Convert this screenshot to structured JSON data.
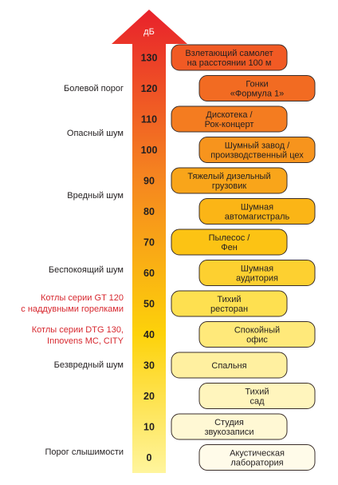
{
  "unit": "дБ",
  "levels": [
    {
      "value": "130",
      "box": [
        "Взлетающий самолет",
        "на расстоянии 100 м"
      ]
    },
    {
      "value": "120",
      "box": [
        "Гонки",
        "«Формула 1»"
      ]
    },
    {
      "value": "110",
      "box": [
        "Дискотека /",
        "Рок-концерт"
      ]
    },
    {
      "value": "100",
      "box": [
        "Шумный завод /",
        "производственный цех"
      ]
    },
    {
      "value": "90",
      "box": [
        "Тяжелый дизельный",
        "грузовик"
      ]
    },
    {
      "value": "80",
      "box": [
        "Шумная",
        "автомагистраль"
      ]
    },
    {
      "value": "70",
      "box": [
        "Пылесос /",
        "Фен"
      ]
    },
    {
      "value": "60",
      "box": [
        "Шумная",
        "аудитория"
      ]
    },
    {
      "value": "50",
      "box": [
        "Тихий",
        "ресторан"
      ]
    },
    {
      "value": "40",
      "box": [
        "Спокойный",
        "офис"
      ]
    },
    {
      "value": "30",
      "box": [
        "Спальня"
      ]
    },
    {
      "value": "20",
      "box": [
        "Тихий",
        "сад"
      ]
    },
    {
      "value": "10",
      "box": [
        "Студия",
        "звукозаписи"
      ]
    },
    {
      "value": "0",
      "box": [
        "Акустическая",
        "лаборатория"
      ]
    }
  ],
  "side_labels": [
    {
      "lines": [
        "Болевой порог"
      ]
    },
    {
      "lines": [
        "Опасный шум"
      ]
    },
    {
      "lines": [
        "Вредный шум"
      ]
    },
    {
      "lines": [
        "Беспокоящий шум"
      ]
    },
    {
      "lines": [
        "Котлы серии GT 120",
        "с наддувными горелками"
      ]
    },
    {
      "lines": [
        "Котлы серии DTG 130,",
        "Innovens MC, CITY"
      ]
    },
    {
      "lines": [
        "Безвредный шум"
      ]
    },
    {
      "lines": [
        "Порог слышимости"
      ]
    }
  ]
}
